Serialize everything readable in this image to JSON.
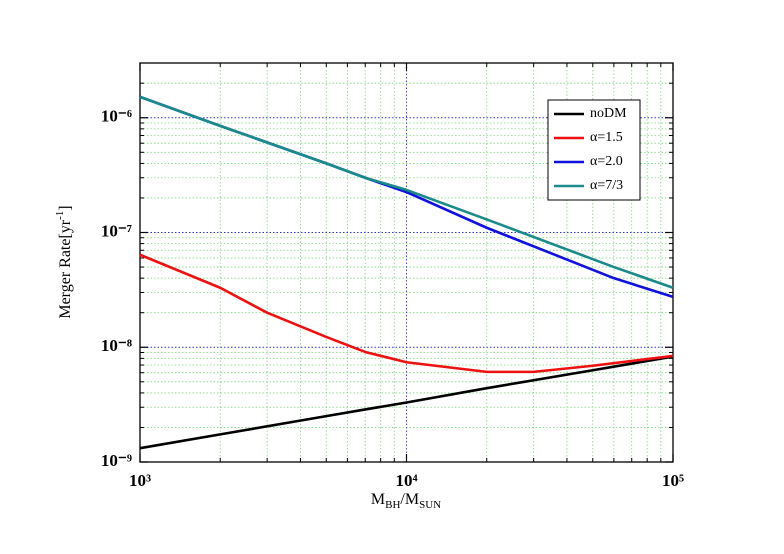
{
  "chart_data": {
    "type": "line",
    "xlabel": [
      "M",
      "BH",
      "/M",
      "SUN"
    ],
    "ylabel": [
      "Merger Rate[yr",
      "-1",
      "]"
    ],
    "log_x": true,
    "log_y": true,
    "grid": true,
    "legend": "upper right",
    "xlim": [
      1000,
      100000
    ],
    "xticks": [
      {
        "value": 1000,
        "label": "10³"
      },
      {
        "value": 10000,
        "label": "10⁴"
      },
      {
        "value": 100000,
        "label": "10⁵"
      }
    ],
    "ylim": [
      1e-09,
      3e-06
    ],
    "yticks": [
      {
        "value": 1e-09,
        "label": "10⁻⁹"
      },
      {
        "value": 1e-08,
        "label": "10⁻⁸"
      },
      {
        "value": 1e-07,
        "label": "10⁻⁷"
      },
      {
        "value": 1e-06,
        "label": "10⁻⁶"
      }
    ],
    "series": [
      {
        "name": "noDM",
        "color": "#000000",
        "x": [
          1000,
          2000,
          5000,
          7000,
          10000,
          20000,
          50000,
          100000
        ],
        "values": [
          1.32e-09,
          1.74e-09,
          2.51e-09,
          2.87e-09,
          3.3e-09,
          4.4e-09,
          6.3e-09,
          8.3e-09
        ]
      },
      {
        "name": "α=1.5",
        "color": "#ee1111",
        "x": [
          1000,
          2000,
          3000,
          5000,
          7000,
          10000,
          20000,
          30000,
          50000,
          100000
        ],
        "values": [
          6.4e-08,
          3.3e-08,
          2e-08,
          1.23e-08,
          9.1e-09,
          7.4e-09,
          6.1e-09,
          6.1e-09,
          6.9e-09,
          8.4e-09
        ]
      },
      {
        "name": "α=2.0",
        "color": "#1111dd",
        "x": [
          1000,
          2000,
          5000,
          7000,
          10000,
          20000,
          60000,
          100000
        ],
        "values": [
          1.52e-06,
          8.5e-07,
          4e-07,
          3e-07,
          2.25e-07,
          1.1e-07,
          4e-08,
          2.75e-08
        ]
      },
      {
        "name": "α=7/3",
        "color": "#1a8a8a",
        "x": [
          1000,
          2000,
          5000,
          7000,
          10000,
          20000,
          60000,
          100000
        ],
        "values": [
          1.52e-06,
          8.5e-07,
          4e-07,
          3e-07,
          2.35e-07,
          1.3e-07,
          5e-08,
          3.3e-08
        ]
      }
    ]
  }
}
